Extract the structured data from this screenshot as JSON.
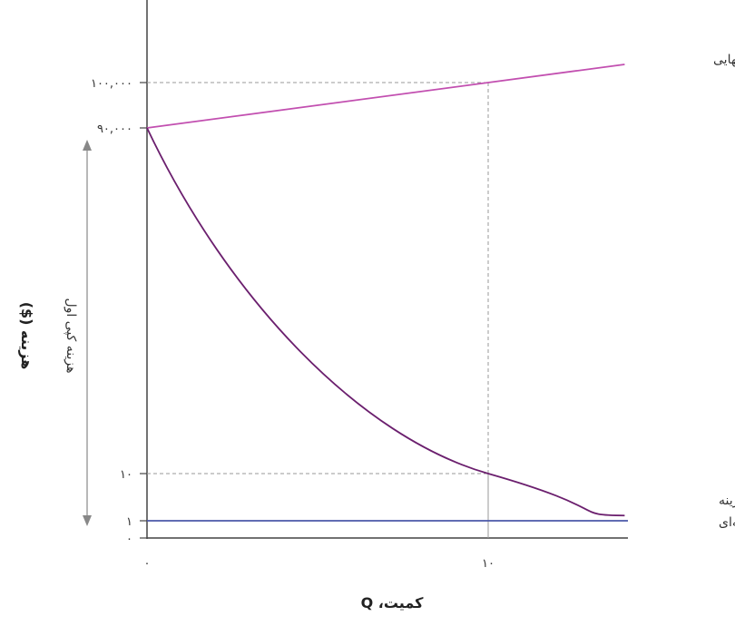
{
  "chart_data": {
    "type": "line",
    "title": "",
    "xlabel": "کمیت، Q",
    "ylabel": "هزینه ($)",
    "x_ticks": [
      {
        "value": 0,
        "label": "۰"
      },
      {
        "value": 10,
        "label": "۱۰"
      }
    ],
    "y_ticks": [
      {
        "value": 0,
        "label": "۰"
      },
      {
        "value": 1,
        "label": "۱"
      },
      {
        "value": 10,
        "label": "۱۰"
      },
      {
        "value": 90000,
        "label": "۹۰,۰۰۰"
      },
      {
        "value": 100000,
        "label": "۱۰۰,۰۰۰"
      }
    ],
    "xlim": [
      0,
      14
    ],
    "y_scale": "broken",
    "series": [
      {
        "name": "هزینه نهایی",
        "color": "#c24fb0",
        "x": [
          0,
          10,
          14
        ],
        "y": [
          90000,
          100000,
          104000
        ]
      },
      {
        "name": "میانگین هزینه",
        "color": "#6b1f6e",
        "x": [
          0,
          10,
          14
        ],
        "y": [
          90000,
          10,
          2
        ]
      },
      {
        "name": "هزینه حاشیه‌ای",
        "color": "#4a57a8",
        "x": [
          0,
          14
        ],
        "y": [
          1,
          1
        ]
      }
    ],
    "annotations": {
      "first_copy_cost": "هزینه کپی اول"
    },
    "guides": [
      {
        "x": 10,
        "y": 100000
      },
      {
        "x": 10,
        "y": 10
      }
    ],
    "grid": false,
    "legend": "none",
    "colors": {
      "axis": "#444444",
      "guide": "#9a9a9a",
      "bracket": "#888888"
    }
  }
}
